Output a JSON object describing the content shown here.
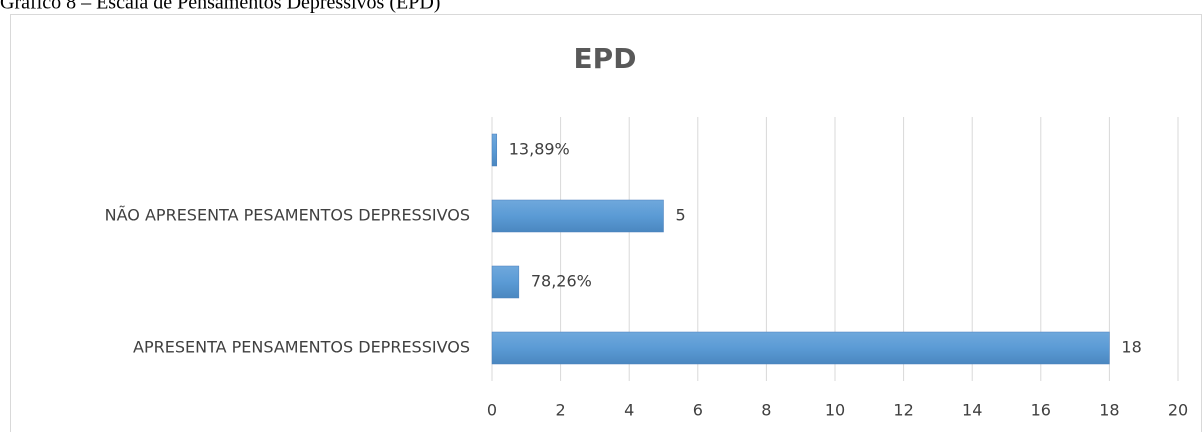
{
  "caption": "Gráfico 8 – Escala de Pensamentos Depressivos (EPD)",
  "chart_data": {
    "type": "barh",
    "title": "EPD",
    "categories": [
      "APRESENTA PENSAMENTOS DEPRESSIVOS",
      null,
      "NÃO APRESENTA PESAMENTOS DEPRESSIVOS",
      null
    ],
    "values": [
      18,
      0.7826,
      5,
      0.1389
    ],
    "value_labels": [
      "18",
      "78,26%",
      "5",
      "13,89%"
    ],
    "color": "#5b9bd5",
    "xlim": [
      0,
      20
    ],
    "xticks": [
      0,
      2,
      4,
      6,
      8,
      10,
      12,
      14,
      16,
      18,
      20
    ],
    "grid": true
  }
}
